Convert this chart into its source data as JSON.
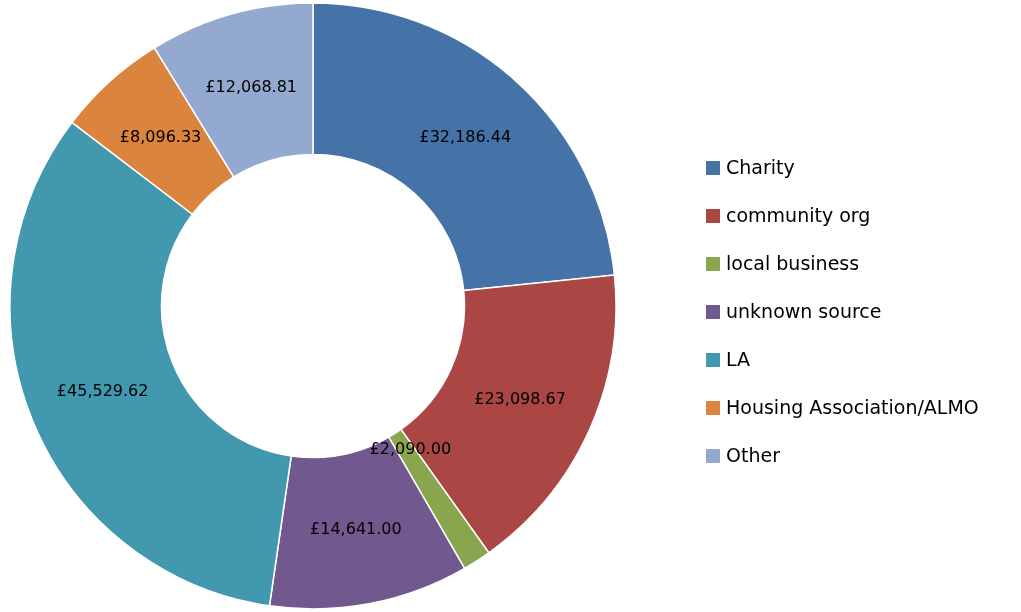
{
  "chart_data": {
    "type": "donut",
    "categories": [
      "Charity",
      "community org",
      "local business",
      "unknown source",
      "LA",
      "Housing Association/ALMO",
      "Other"
    ],
    "values": [
      32186.44,
      23098.67,
      2090.0,
      14641.0,
      45529.62,
      8096.33,
      12068.81
    ],
    "colors": [
      "#4572a7",
      "#aa4643",
      "#89a54e",
      "#71588f",
      "#4198af",
      "#db843d",
      "#93a9cf"
    ],
    "value_labels": [
      "£32,186.44",
      "£23,098.67",
      "£2,090.00",
      "£14,641.00",
      "£45,529.62",
      "£8,096.33",
      "£12,068.81"
    ],
    "legend": "right"
  }
}
